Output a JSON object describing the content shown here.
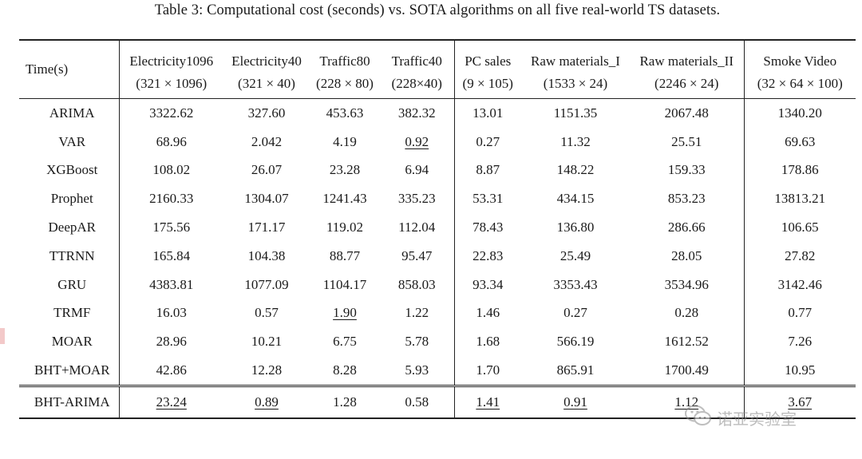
{
  "caption": "Table 3: Computational cost (seconds) vs. SOTA algorithms on all five real-world TS datasets.",
  "header": {
    "time_label": "Time(s)",
    "columns": [
      {
        "name": "Electricity1096",
        "dims": "(321 × 1096)"
      },
      {
        "name": "Electricity40",
        "dims": "(321 × 40)"
      },
      {
        "name": "Traffic80",
        "dims": "(228 × 80)"
      },
      {
        "name": "Traffic40",
        "dims": "(228×40)"
      },
      {
        "name": "PC sales",
        "dims": "(9 × 105)"
      },
      {
        "name": "Raw materials_I",
        "dims": "(1533 × 24)"
      },
      {
        "name": "Raw materials_II",
        "dims": "(2246 × 24)"
      },
      {
        "name": "Smoke Video",
        "dims": "(32 × 64 × 100)"
      }
    ]
  },
  "rows": [
    {
      "name": "ARIMA",
      "values": [
        "3322.62",
        "327.60",
        "453.63",
        "382.32",
        "13.01",
        "1151.35",
        "2067.48",
        "1340.20"
      ]
    },
    {
      "name": "VAR",
      "values": [
        "68.96",
        "2.042",
        "4.19",
        "0.92",
        "0.27",
        "11.32",
        "25.51",
        "69.63"
      ]
    },
    {
      "name": "XGBoost",
      "values": [
        "108.02",
        "26.07",
        "23.28",
        "6.94",
        "8.87",
        "148.22",
        "159.33",
        "178.86"
      ]
    },
    {
      "name": "Prophet",
      "values": [
        "2160.33",
        "1304.07",
        "1241.43",
        "335.23",
        "53.31",
        "434.15",
        "853.23",
        "13813.21"
      ]
    },
    {
      "name": "DeepAR",
      "values": [
        "175.56",
        "171.17",
        "119.02",
        "112.04",
        "78.43",
        "136.80",
        "286.66",
        "106.65"
      ]
    },
    {
      "name": "TTRNN",
      "values": [
        "165.84",
        "104.38",
        "88.77",
        "95.47",
        "22.83",
        "25.49",
        "28.05",
        "27.82"
      ]
    },
    {
      "name": "GRU",
      "values": [
        "4383.81",
        "1077.09",
        "1104.17",
        "858.03",
        "93.34",
        "3353.43",
        "3534.96",
        "3142.46"
      ]
    },
    {
      "name": "TRMF",
      "values": [
        "16.03",
        "0.57",
        "1.90",
        "1.22",
        "1.46",
        "0.27",
        "0.28",
        "0.77"
      ]
    },
    {
      "name": "MOAR",
      "values": [
        "28.96",
        "10.21",
        "6.75",
        "5.78",
        "1.68",
        "566.19",
        "1612.52",
        "7.26"
      ]
    },
    {
      "name": "BHT+MOAR",
      "values": [
        "42.86",
        "12.28",
        "8.28",
        "5.93",
        "1.70",
        "865.91",
        "1700.49",
        "10.95"
      ]
    },
    {
      "name": "BHT-ARIMA",
      "values": [
        "23.24",
        "0.89",
        "1.28",
        "0.58",
        "1.41",
        "0.91",
        "1.12",
        "3.67"
      ]
    }
  ],
  "watermark": "诺亚实验室",
  "icons": {
    "watermark": "wechat-icon"
  }
}
